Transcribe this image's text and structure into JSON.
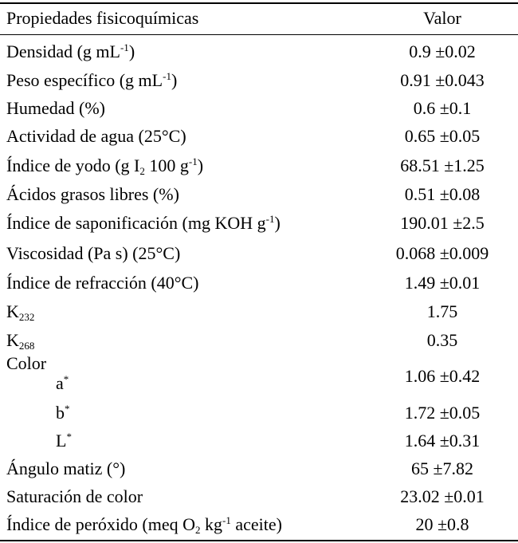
{
  "header": {
    "property": "Propiedades fisicoquímicas",
    "value": "Valor"
  },
  "rows": [
    {
      "label": "Densidad (g mL",
      "sup": "-1",
      "tail": ")",
      "value": "0.9 ±0.02"
    },
    {
      "label": "Peso específico (g mL",
      "sup": "-1",
      "tail": ")",
      "value": "0.91 ±0.043"
    },
    {
      "label": "Humedad (%)",
      "value": "0.6 ±0.1"
    },
    {
      "label": "Actividad de agua (25°C)",
      "value": "0.65 ±0.05"
    },
    {
      "label": "Índice de yodo (g I",
      "sub": "2",
      "mid": " 100 g",
      "sup": "-1",
      "tail": ")",
      "value": "68.51 ±1.25"
    },
    {
      "label": "Ácidos grasos libres (%)",
      "value": "0.51 ±0.08"
    },
    {
      "label": "Índice de saponificación (mg KOH g",
      "sup": "-1",
      "tail": ")",
      "value": "190.01 ±2.5"
    },
    {
      "label": "Viscosidad (Pa s) (25°C)",
      "value": "0.068 ±0.009"
    },
    {
      "label": "Índice de refracción (40°C)",
      "value": "1.49 ±0.01"
    },
    {
      "label": "K",
      "sub": "232",
      "value": "1.75"
    },
    {
      "label": "K",
      "sub": "268",
      "value": "0.35"
    },
    {
      "label": "Color"
    },
    {
      "label": "a",
      "sup": "*",
      "value": "1.06 ±0.42"
    },
    {
      "label": "b",
      "sup": "*",
      "value": "1.72 ±0.05"
    },
    {
      "label": "L",
      "sup": "*",
      "value": "1.64 ±0.31"
    },
    {
      "label": "Ángulo matiz (°)",
      "value": "65 ±7.82"
    },
    {
      "label": "Saturación de color",
      "value": "23.02 ±0.01"
    },
    {
      "label": "Índice de peróxido (meq O",
      "sub": "2",
      "mid": " kg",
      "sup": "-1",
      "tail": " aceite)",
      "value": "20 ±0.8"
    }
  ]
}
